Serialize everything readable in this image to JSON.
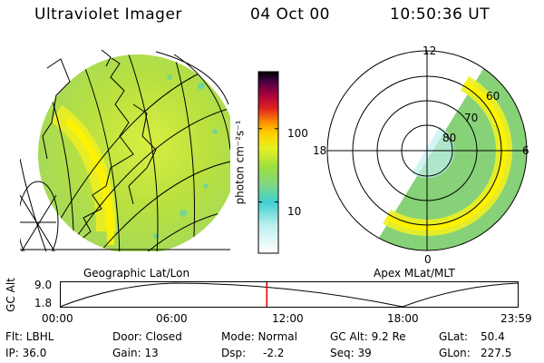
{
  "header": {
    "title": "Ultraviolet Imager",
    "date": "04 Oct 00",
    "time": "10:50:36 UT"
  },
  "left_panel": {
    "caption": "Geographic Lat/Lon"
  },
  "colorbar": {
    "unit_label": "photon cm⁻²s⁻¹",
    "ticks": [
      {
        "value": 100,
        "label": "100"
      },
      {
        "value": 10,
        "label": "10"
      }
    ],
    "scale": "log",
    "range": [
      2,
      600
    ]
  },
  "right_panel": {
    "caption": "Apex MLat/MLT",
    "mlt_labels": {
      "top": "12",
      "left": "18",
      "right": "6",
      "bottom": "0"
    },
    "lat_labels": [
      "60",
      "70",
      "80"
    ]
  },
  "timeline": {
    "ylabel": "GC Alt",
    "y_ticks": [
      "9.0",
      "1.8"
    ],
    "x_ticks": [
      "00:00",
      "06:00",
      "12:00",
      "18:00",
      "23:59"
    ],
    "current_time_hours": 10.84,
    "marker_color": "#e00000"
  },
  "info": {
    "row1": {
      "flt": "Flt: LBHL",
      "door": "Door: Closed",
      "mode": "Mode: Normal",
      "gc_alt": "GC Alt: 9.2 Re",
      "glat_label": "GLat:",
      "glat_value": "50.4"
    },
    "row2": {
      "ip": "IP: 36.0",
      "gain": "Gain: 13",
      "dsp_label": "Dsp:",
      "dsp_value": "-2.2",
      "seq": "Seq: 39",
      "glon_label": "GLon:",
      "glon_value": "227.5"
    }
  }
}
